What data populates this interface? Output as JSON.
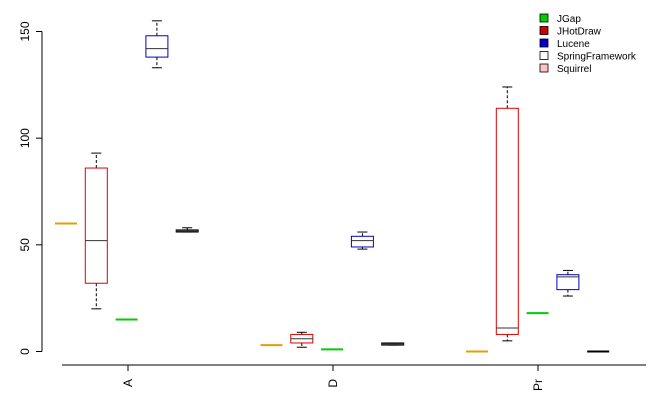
{
  "chart_data": {
    "type": "box",
    "title": "",
    "xlabel": "",
    "ylabel": "",
    "ylim": [
      0,
      160
    ],
    "yticks": [
      0,
      50,
      100,
      150
    ],
    "grid": false,
    "legend_position": "top-right",
    "categories": [
      "A",
      "D",
      "Pr"
    ],
    "series": [
      {
        "name": "JGap",
        "fill": "#00cc00",
        "stroke": "#00cc00",
        "boxes": [
          {
            "category": "A",
            "min": 15,
            "q1": 15,
            "median": 15,
            "q3": 15,
            "max": 15
          },
          {
            "category": "D",
            "min": 1,
            "q1": 1,
            "median": 1,
            "q3": 1,
            "max": 1
          },
          {
            "category": "Pr",
            "min": 18,
            "q1": 18,
            "median": 18,
            "q3": 18,
            "max": 18
          }
        ]
      },
      {
        "name": "JHotDraw",
        "fill": "#cc0000",
        "stroke": "#dd0000",
        "boxes": [
          {
            "category": "A",
            "min": 20,
            "q1": 32,
            "median": 52,
            "q3": 86,
            "max": 93
          },
          {
            "category": "D",
            "min": 2,
            "q1": 4,
            "median": 6,
            "q3": 8,
            "max": 9
          },
          {
            "category": "Pr",
            "min": 5,
            "q1": 8,
            "median": 11,
            "q3": 114,
            "max": 124
          }
        ]
      },
      {
        "name": "Lucene",
        "fill": "#0000cc",
        "stroke": "#0000cc",
        "boxes": [
          {
            "category": "A",
            "min": 133,
            "q1": 138,
            "median": 142,
            "q3": 148,
            "max": 155
          },
          {
            "category": "D",
            "min": 48,
            "q1": 49,
            "median": 52,
            "q3": 54,
            "max": 56
          },
          {
            "category": "Pr",
            "min": 26,
            "q1": 29,
            "median": 35,
            "q3": 36,
            "max": 38
          }
        ]
      },
      {
        "name": "SpringFramework",
        "fill": "#ffffff",
        "stroke": "#000000",
        "boxes": [
          {
            "category": "A",
            "min": 56,
            "q1": 56,
            "median": 56.5,
            "q3": 57,
            "max": 58
          },
          {
            "category": "D",
            "min": 3,
            "q1": 3,
            "median": 3.5,
            "q3": 4,
            "max": 4
          },
          {
            "category": "Pr",
            "min": 0,
            "q1": 0,
            "median": 0,
            "q3": 0,
            "max": 0
          }
        ]
      },
      {
        "name": "Squirrel",
        "fill": "#ffc0cb",
        "stroke": "#e0a000",
        "boxes": [
          {
            "category": "A",
            "min": 60,
            "q1": 60,
            "median": 60,
            "q3": 60,
            "max": 60
          },
          {
            "category": "D",
            "min": 3,
            "q1": 3,
            "median": 3,
            "q3": 3,
            "max": 3
          },
          {
            "category": "Pr",
            "min": 0,
            "q1": 0,
            "median": 0,
            "q3": 0,
            "max": 0
          }
        ]
      }
    ],
    "draw_order": [
      "Squirrel",
      "JHotDraw",
      "JGap",
      "Lucene",
      "SpringFramework"
    ]
  }
}
